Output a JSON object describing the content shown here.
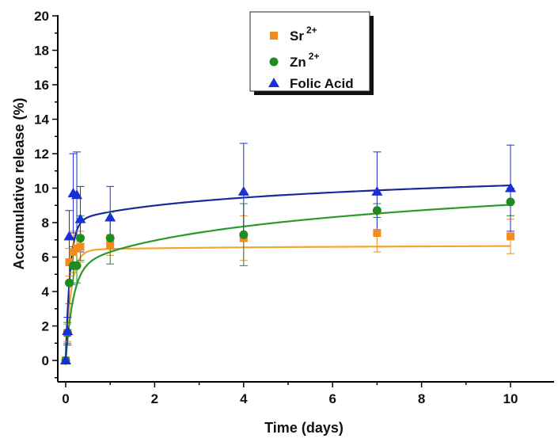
{
  "chart_data": {
    "type": "scatter",
    "xlabel": "Time (days)",
    "ylabel": "Accumulative release (%)",
    "xlim": [
      -0.1,
      11.2
    ],
    "ylim": [
      -1.2,
      20
    ],
    "x_ticks": [
      "0",
      "2",
      "4",
      "6",
      "8",
      "10"
    ],
    "y_ticks": [
      "0",
      "2",
      "4",
      "6",
      "8",
      "10",
      "12",
      "14",
      "16",
      "18",
      "20"
    ],
    "legend_position": "top-center",
    "series": [
      {
        "name": "Sr",
        "superscript": "2+",
        "marker": "square",
        "color": "#f28c1e",
        "fit_color": "#f5a531",
        "x": [
          0,
          0.04,
          0.08,
          0.17,
          0.25,
          0.33,
          1,
          4,
          7,
          10
        ],
        "y": [
          0,
          1.6,
          5.7,
          6.3,
          6.5,
          6.6,
          6.7,
          7.1,
          7.4,
          7.2
        ],
        "err": [
          0,
          0.5,
          0.8,
          1.2,
          1.0,
          0.9,
          0.6,
          1.3,
          1.1,
          1.0
        ],
        "fit": {
          "a": 6.4,
          "k": 8,
          "b": 0.1
        }
      },
      {
        "name": "Zn",
        "superscript": "2+",
        "marker": "circle",
        "color": "#1e8c1e",
        "fit_color": "#2a9a2a",
        "x": [
          0,
          0.04,
          0.08,
          0.17,
          0.25,
          0.33,
          1,
          4,
          7,
          10
        ],
        "y": [
          0,
          1.6,
          4.5,
          5.5,
          5.5,
          7.1,
          7.1,
          7.3,
          8.7,
          9.2
        ],
        "err": [
          0,
          0.6,
          1.2,
          1.1,
          1.0,
          1.3,
          1.5,
          1.8,
          0.4,
          0.8
        ],
        "fit": {
          "a": 5.2,
          "k": 6,
          "b": 1.6
        }
      },
      {
        "name": "Folic Acid",
        "superscript": "",
        "marker": "triangle",
        "color": "#1a2fd6",
        "fit_color": "#1a2a9a",
        "x": [
          0,
          0.04,
          0.08,
          0.17,
          0.25,
          0.33,
          1,
          4,
          7,
          10
        ],
        "y": [
          0,
          1.7,
          7.2,
          9.7,
          9.6,
          8.2,
          8.3,
          9.8,
          9.8,
          10.0
        ],
        "err": [
          0,
          0.8,
          1.5,
          2.3,
          2.5,
          1.9,
          1.8,
          2.8,
          2.3,
          2.5
        ],
        "fit": {
          "a": 8.0,
          "k": 10,
          "b": 0.9
        }
      }
    ]
  }
}
